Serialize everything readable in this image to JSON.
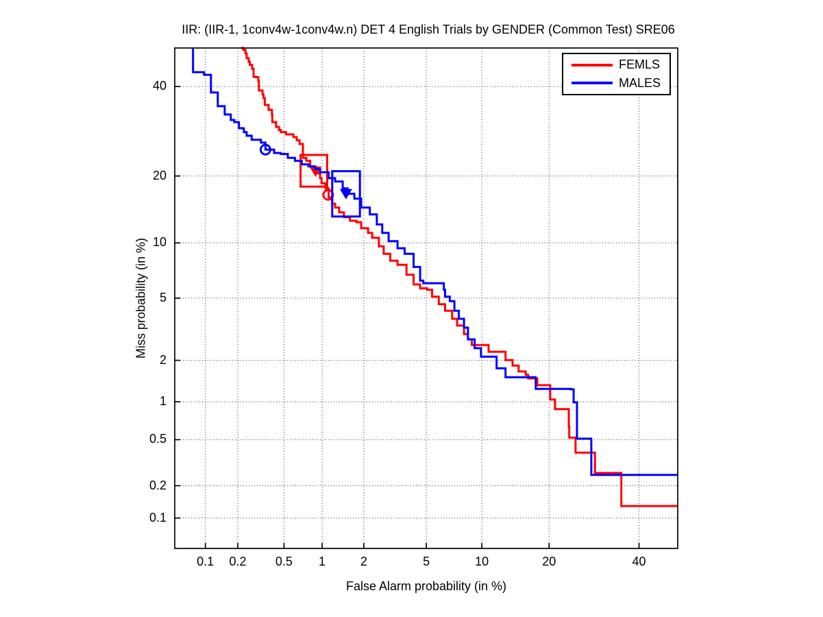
{
  "chart_data": {
    "type": "line",
    "subtype": "DET-curve",
    "title": "IIR: (IIR-1, 1conv4w-1conv4w.n) DET 4 English Trials by GENDER (Common Test) SRE06",
    "xlabel": "False Alarm probability (in %)",
    "ylabel": "Miss probability (in %)",
    "axis_scale": "probit",
    "grid": "dotted",
    "xlim": [
      0.05,
      50
    ],
    "ylim": [
      0.05,
      50
    ],
    "x_ticks": {
      "values": [
        0.1,
        0.2,
        0.5,
        1,
        2,
        5,
        10,
        20,
        40
      ],
      "labels": [
        "0.1",
        "0.2",
        "0.5",
        "1",
        "2",
        "5",
        "10",
        "20",
        "40"
      ]
    },
    "y_ticks": {
      "values": [
        0.1,
        0.2,
        0.5,
        1,
        2,
        5,
        10,
        20,
        40
      ],
      "labels": [
        "0.1",
        "0.2",
        "0.5",
        "1",
        "2",
        "5",
        "10",
        "20",
        "40"
      ]
    },
    "legend": {
      "position": "top-right",
      "entries": [
        "FEMLS",
        "MALES"
      ]
    },
    "series": [
      {
        "name": "FEMLS",
        "color": "#ff0000",
        "points": [
          [
            0.214,
            50
          ],
          [
            0.224,
            49.5
          ],
          [
            0.234,
            48.6
          ],
          [
            0.24,
            47.3
          ],
          [
            0.25,
            46.4
          ],
          [
            0.256,
            45.6
          ],
          [
            0.268,
            44.6
          ],
          [
            0.276,
            42.5
          ],
          [
            0.287,
            42.4
          ],
          [
            0.304,
            41.4
          ],
          [
            0.307,
            39.0
          ],
          [
            0.33,
            38.0
          ],
          [
            0.337,
            37.1
          ],
          [
            0.345,
            35.4
          ],
          [
            0.372,
            34.2
          ],
          [
            0.397,
            32.9
          ],
          [
            0.4,
            31.3
          ],
          [
            0.43,
            30.2
          ],
          [
            0.454,
            29.5
          ],
          [
            0.47,
            29.0
          ],
          [
            0.52,
            28.5
          ],
          [
            0.596,
            27.9
          ],
          [
            0.634,
            27.2
          ],
          [
            0.668,
            26.4
          ],
          [
            0.71,
            25.8
          ],
          [
            0.71,
            23.5
          ],
          [
            0.755,
            22.9
          ],
          [
            0.81,
            21.8
          ],
          [
            0.855,
            21.0
          ],
          [
            0.88,
            20.5
          ],
          [
            0.965,
            19.6
          ],
          [
            0.99,
            18.7
          ],
          [
            1.06,
            17.8
          ],
          [
            1.12,
            16.9
          ],
          [
            1.12,
            16.3
          ],
          [
            1.19,
            15.3
          ],
          [
            1.25,
            14.7
          ],
          [
            1.34,
            14.0
          ],
          [
            1.45,
            13.3
          ],
          [
            1.6,
            12.8
          ],
          [
            1.78,
            12.6
          ],
          [
            1.92,
            11.8
          ],
          [
            2.14,
            11.2
          ],
          [
            2.28,
            10.6
          ],
          [
            2.53,
            9.6
          ],
          [
            2.72,
            8.8
          ],
          [
            3.0,
            8.1
          ],
          [
            3.34,
            7.7
          ],
          [
            3.8,
            6.8
          ],
          [
            4.2,
            6.0
          ],
          [
            4.6,
            5.7
          ],
          [
            5.05,
            5.6
          ],
          [
            5.4,
            5.1
          ],
          [
            5.9,
            4.6
          ],
          [
            6.4,
            4.2
          ],
          [
            7.0,
            3.75
          ],
          [
            7.45,
            3.4
          ],
          [
            8.1,
            3.0
          ],
          [
            8.5,
            2.77
          ],
          [
            8.9,
            2.54
          ],
          [
            10.8,
            2.54
          ],
          [
            10.8,
            2.29
          ],
          [
            13.0,
            2.29
          ],
          [
            13.0,
            2.01
          ],
          [
            14.0,
            2.01
          ],
          [
            14.0,
            1.84
          ],
          [
            14.9,
            1.84
          ],
          [
            14.9,
            1.67
          ],
          [
            16.0,
            1.67
          ],
          [
            16.0,
            1.58
          ],
          [
            16.4,
            1.58
          ],
          [
            16.4,
            1.49
          ],
          [
            17.75,
            1.49
          ],
          [
            17.9,
            1.33
          ],
          [
            20.2,
            1.33
          ],
          [
            20.2,
            1.04
          ],
          [
            21.1,
            1.03
          ],
          [
            21.1,
            0.88
          ],
          [
            23.4,
            0.88
          ],
          [
            23.8,
            0.64
          ],
          [
            23.9,
            0.52
          ],
          [
            25.2,
            0.52
          ],
          [
            25.2,
            0.39
          ],
          [
            29.4,
            0.39
          ],
          [
            29.4,
            0.26
          ],
          [
            35.3,
            0.26
          ],
          [
            35.6,
            0.13
          ],
          [
            50,
            0.13
          ]
        ],
        "markers": [
          {
            "shape": "triangle-down-filled",
            "fa": 0.89,
            "miss": 21.0
          },
          {
            "shape": "circle-open",
            "fa": 1.11,
            "miss": 16.7
          }
        ],
        "box": {
          "fa": [
            0.68,
            1.09
          ],
          "miss": [
            18.1,
            24.1
          ]
        }
      },
      {
        "name": "MALES",
        "color": "#0000ff",
        "points": [
          [
            0.076,
            50
          ],
          [
            0.076,
            43.7
          ],
          [
            0.097,
            43.5
          ],
          [
            0.097,
            43.0
          ],
          [
            0.113,
            43.0
          ],
          [
            0.113,
            38.5
          ],
          [
            0.131,
            38.3
          ],
          [
            0.131,
            35.1
          ],
          [
            0.152,
            35.0
          ],
          [
            0.152,
            33.1
          ],
          [
            0.173,
            33.0
          ],
          [
            0.173,
            31.8
          ],
          [
            0.186,
            31.3
          ],
          [
            0.203,
            31.2
          ],
          [
            0.205,
            29.9
          ],
          [
            0.224,
            29.8
          ],
          [
            0.227,
            29.0
          ],
          [
            0.24,
            28.2
          ],
          [
            0.265,
            28.1
          ],
          [
            0.266,
            27.3
          ],
          [
            0.317,
            27.3
          ],
          [
            0.32,
            26.7
          ],
          [
            0.35,
            25.2
          ],
          [
            0.414,
            24.5
          ],
          [
            0.47,
            24.3
          ],
          [
            0.537,
            23.5
          ],
          [
            0.614,
            22.9
          ],
          [
            0.695,
            22.2
          ],
          [
            0.785,
            21.8
          ],
          [
            0.887,
            21.3
          ],
          [
            0.965,
            20.7
          ],
          [
            1.12,
            19.6
          ],
          [
            1.25,
            19.0
          ],
          [
            1.42,
            17.8
          ],
          [
            1.54,
            16.9
          ],
          [
            1.72,
            16.1
          ],
          [
            1.92,
            14.7
          ],
          [
            2.2,
            13.7
          ],
          [
            2.45,
            12.3
          ],
          [
            2.66,
            11.2
          ],
          [
            2.93,
            10.2
          ],
          [
            3.34,
            9.4
          ],
          [
            3.7,
            8.8
          ],
          [
            4.2,
            7.5
          ],
          [
            4.6,
            6.3
          ],
          [
            4.8,
            6.1
          ],
          [
            5.9,
            6.1
          ],
          [
            6.3,
            5.6
          ],
          [
            6.4,
            5.1
          ],
          [
            6.8,
            4.8
          ],
          [
            7.2,
            4.2
          ],
          [
            7.6,
            3.75
          ],
          [
            8.1,
            3.3
          ],
          [
            8.5,
            2.77
          ],
          [
            9.2,
            2.42
          ],
          [
            9.9,
            2.4
          ],
          [
            9.9,
            2.12
          ],
          [
            11.8,
            2.08
          ],
          [
            11.8,
            1.76
          ],
          [
            13.0,
            1.75
          ],
          [
            13.0,
            1.52
          ],
          [
            17.6,
            1.51
          ],
          [
            17.65,
            1.25
          ],
          [
            24.2,
            1.24
          ],
          [
            24.8,
            0.99
          ],
          [
            25.5,
            0.51
          ],
          [
            28.6,
            0.51
          ],
          [
            28.6,
            0.25
          ],
          [
            50,
            0.25
          ]
        ],
        "markers": [
          {
            "shape": "circle-open",
            "fa": 0.35,
            "miss": 25.2
          },
          {
            "shape": "triangle-down-filled",
            "fa": 1.5,
            "miss": 17.0
          }
        ],
        "box": {
          "fa": [
            1.19,
            1.88
          ],
          "miss": [
            13.4,
            20.9
          ]
        }
      }
    ]
  }
}
